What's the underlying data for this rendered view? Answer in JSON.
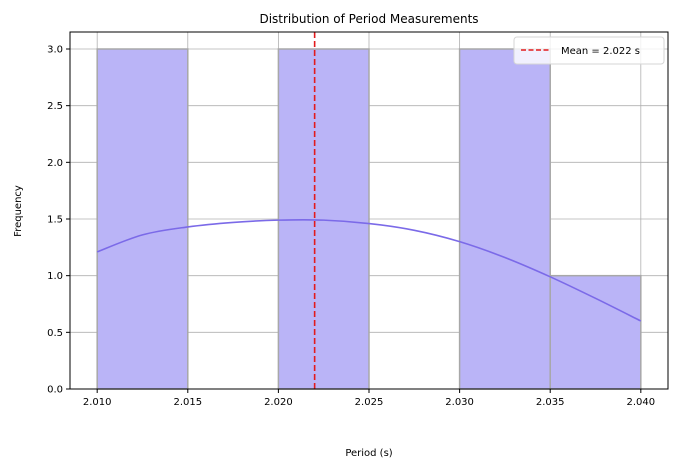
{
  "chart_data": {
    "type": "bar",
    "title": "Distribution of Period Measurements",
    "xlabel": "Period (s)",
    "ylabel": "Frequency",
    "xlim": [
      2.0085,
      2.0415
    ],
    "ylim": [
      0,
      3.15
    ],
    "xticks": [
      2.01,
      2.015,
      2.02,
      2.025,
      2.03,
      2.035,
      2.04
    ],
    "xtick_labels": [
      "2.010",
      "2.015",
      "2.020",
      "2.025",
      "2.030",
      "2.035",
      "2.040"
    ],
    "yticks": [
      0,
      0.5,
      1.0,
      1.5,
      2.0,
      2.5,
      3.0
    ],
    "ytick_labels": [
      "0.0",
      "0.5",
      "1.0",
      "1.5",
      "2.0",
      "2.5",
      "3.0"
    ],
    "grid": true,
    "bins": [
      {
        "x0": 2.01,
        "x1": 2.015,
        "count": 3
      },
      {
        "x0": 2.015,
        "x1": 2.02,
        "count": 0
      },
      {
        "x0": 2.02,
        "x1": 2.025,
        "count": 3
      },
      {
        "x0": 2.025,
        "x1": 2.03,
        "count": 0
      },
      {
        "x0": 2.03,
        "x1": 2.035,
        "count": 3
      },
      {
        "x0": 2.035,
        "x1": 2.04,
        "count": 1
      }
    ],
    "kde": {
      "x": [
        2.01,
        2.0125,
        2.015,
        2.0175,
        2.02,
        2.0225,
        2.025,
        2.0275,
        2.03,
        2.0325,
        2.035,
        2.0375,
        2.04
      ],
      "y": [
        1.21,
        1.36,
        1.43,
        1.47,
        1.49,
        1.49,
        1.46,
        1.4,
        1.3,
        1.16,
        0.99,
        0.8,
        0.6
      ]
    },
    "mean_line": {
      "x": 2.022,
      "label": "Mean = 2.022 s"
    },
    "legend_position": "top-right",
    "colors": {
      "bar_fill": "#bab4f7",
      "bar_edge": "#a8a8a8",
      "kde_line": "#7b6ae8",
      "mean_line": "#e31a1c",
      "grid": "#b0b0b0"
    }
  }
}
